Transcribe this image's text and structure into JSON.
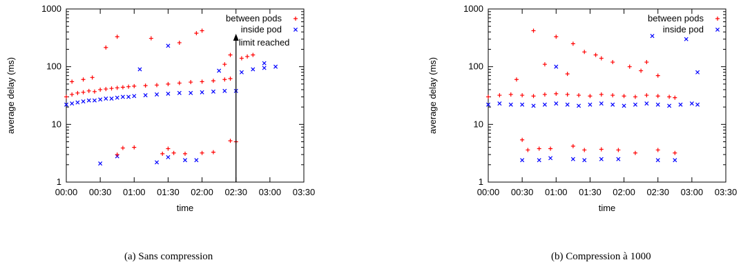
{
  "colors": {
    "between": "#ff0000",
    "inside": "#0000ff"
  },
  "chart_data": [
    {
      "type": "scatter",
      "xlabel": "time",
      "ylabel": "average delay (ms)",
      "y_scale": "log",
      "ylim": [
        1,
        1000
      ],
      "xlim": [
        "00:00",
        "03:30"
      ],
      "x_tick_labels": [
        "00:00",
        "00:30",
        "01:00",
        "01:30",
        "02:00",
        "02:30",
        "03:00",
        "03:30"
      ],
      "y_tick_labels": [
        "1",
        "10",
        "100",
        "1000"
      ],
      "legend_position": "top-right",
      "caption": "(a) Sans compression",
      "annotation": {
        "text": "limit reached",
        "x": "02:30"
      },
      "series": [
        {
          "name": "between pods",
          "marker": "+",
          "points": [
            [
              "00:00",
              30
            ],
            [
              "00:05",
              33
            ],
            [
              "00:10",
              35
            ],
            [
              "00:15",
              36
            ],
            [
              "00:20",
              38
            ],
            [
              "00:25",
              37
            ],
            [
              "00:30",
              40
            ],
            [
              "00:35",
              41
            ],
            [
              "00:40",
              42
            ],
            [
              "00:45",
              43
            ],
            [
              "00:50",
              44
            ],
            [
              "00:55",
              45
            ],
            [
              "01:00",
              46
            ],
            [
              "01:10",
              47
            ],
            [
              "01:20",
              48
            ],
            [
              "01:30",
              50
            ],
            [
              "01:40",
              52
            ],
            [
              "01:50",
              54
            ],
            [
              "02:00",
              55
            ],
            [
              "02:10",
              57
            ],
            [
              "02:20",
              60
            ],
            [
              "02:25",
              62
            ],
            [
              "02:35",
              140
            ],
            [
              "02:40",
              150
            ],
            [
              "02:45",
              160
            ],
            [
              "00:05",
              55
            ],
            [
              "00:15",
              60
            ],
            [
              "00:23",
              65
            ],
            [
              "00:35",
              215
            ],
            [
              "00:45",
              330
            ],
            [
              "01:15",
              310
            ],
            [
              "01:40",
              260
            ],
            [
              "01:55",
              380
            ],
            [
              "02:00",
              420
            ],
            [
              "02:20",
              110
            ],
            [
              "02:25",
              160
            ],
            [
              "00:45",
              3.0
            ],
            [
              "00:50",
              3.9
            ],
            [
              "01:00",
              4.0
            ],
            [
              "01:25",
              3.1
            ],
            [
              "01:30",
              3.8
            ],
            [
              "01:35",
              3.2
            ],
            [
              "01:45",
              3.1
            ],
            [
              "02:00",
              3.2
            ],
            [
              "02:10",
              3.3
            ],
            [
              "02:25",
              5.2
            ],
            [
              "02:30",
              5.0
            ]
          ]
        },
        {
          "name": "inside pod",
          "marker": "x",
          "points": [
            [
              "00:00",
              22
            ],
            [
              "00:05",
              23
            ],
            [
              "00:10",
              24
            ],
            [
              "00:15",
              25
            ],
            [
              "00:20",
              26
            ],
            [
              "00:25",
              26
            ],
            [
              "00:30",
              27
            ],
            [
              "00:35",
              28
            ],
            [
              "00:40",
              28
            ],
            [
              "00:45",
              29
            ],
            [
              "00:50",
              30
            ],
            [
              "00:55",
              30
            ],
            [
              "01:00",
              31
            ],
            [
              "01:10",
              32
            ],
            [
              "01:20",
              33
            ],
            [
              "01:30",
              34
            ],
            [
              "01:40",
              35
            ],
            [
              "01:50",
              35
            ],
            [
              "02:00",
              36
            ],
            [
              "02:10",
              37
            ],
            [
              "02:20",
              38
            ],
            [
              "02:30",
              38
            ],
            [
              "02:35",
              80
            ],
            [
              "02:45",
              90
            ],
            [
              "02:55",
              95
            ],
            [
              "03:05",
              100
            ],
            [
              "01:05",
              90
            ],
            [
              "01:30",
              230
            ],
            [
              "02:15",
              85
            ],
            [
              "02:55",
              115
            ],
            [
              "00:30",
              2.1
            ],
            [
              "00:45",
              2.8
            ],
            [
              "01:20",
              2.2
            ],
            [
              "01:30",
              2.7
            ],
            [
              "01:45",
              2.4
            ],
            [
              "01:55",
              2.4
            ]
          ]
        }
      ]
    },
    {
      "type": "scatter",
      "xlabel": "time",
      "ylabel": "average delay (ms)",
      "y_scale": "log",
      "ylim": [
        1,
        1000
      ],
      "xlim": [
        "00:00",
        "03:30"
      ],
      "x_tick_labels": [
        "00:00",
        "00:30",
        "01:00",
        "01:30",
        "02:00",
        "02:30",
        "03:00",
        "03:30"
      ],
      "y_tick_labels": [
        "1",
        "10",
        "100",
        "1000"
      ],
      "legend_position": "top-right",
      "caption": "(b) Compression à 1000",
      "series": [
        {
          "name": "between pods",
          "marker": "+",
          "points": [
            [
              "00:00",
              30
            ],
            [
              "00:10",
              32
            ],
            [
              "00:20",
              33
            ],
            [
              "00:30",
              32
            ],
            [
              "00:40",
              31
            ],
            [
              "00:50",
              33
            ],
            [
              "01:00",
              34
            ],
            [
              "01:10",
              33
            ],
            [
              "01:20",
              32
            ],
            [
              "01:30",
              31
            ],
            [
              "01:40",
              33
            ],
            [
              "01:50",
              32
            ],
            [
              "02:00",
              31
            ],
            [
              "02:10",
              30
            ],
            [
              "02:20",
              32
            ],
            [
              "02:30",
              31
            ],
            [
              "02:40",
              30
            ],
            [
              "02:45",
              29
            ],
            [
              "00:40",
              420
            ],
            [
              "01:00",
              330
            ],
            [
              "01:15",
              250
            ],
            [
              "01:25",
              180
            ],
            [
              "01:40",
              140
            ],
            [
              "01:50",
              120
            ],
            [
              "02:05",
              100
            ],
            [
              "02:15",
              85
            ],
            [
              "02:30",
              70
            ],
            [
              "00:50",
              110
            ],
            [
              "01:35",
              160
            ],
            [
              "02:20",
              120
            ],
            [
              "00:25",
              60
            ],
            [
              "01:10",
              75
            ],
            [
              "00:30",
              5.4
            ],
            [
              "00:35",
              3.6
            ],
            [
              "00:45",
              3.8
            ],
            [
              "00:55",
              3.8
            ],
            [
              "01:15",
              4.2
            ],
            [
              "01:25",
              3.6
            ],
            [
              "01:40",
              3.7
            ],
            [
              "01:55",
              3.6
            ],
            [
              "02:10",
              3.2
            ],
            [
              "02:30",
              3.6
            ],
            [
              "02:45",
              3.2
            ]
          ]
        },
        {
          "name": "inside pod",
          "marker": "x",
          "points": [
            [
              "00:00",
              22
            ],
            [
              "00:10",
              23
            ],
            [
              "00:20",
              22
            ],
            [
              "00:30",
              22
            ],
            [
              "00:40",
              21
            ],
            [
              "00:50",
              22
            ],
            [
              "01:00",
              23
            ],
            [
              "01:10",
              22
            ],
            [
              "01:20",
              21
            ],
            [
              "01:30",
              22
            ],
            [
              "01:40",
              23
            ],
            [
              "01:50",
              22
            ],
            [
              "02:00",
              21
            ],
            [
              "02:10",
              22
            ],
            [
              "02:20",
              23
            ],
            [
              "02:30",
              22
            ],
            [
              "02:40",
              21
            ],
            [
              "02:50",
              22
            ],
            [
              "03:00",
              23
            ],
            [
              "03:05",
              22
            ],
            [
              "01:00",
              100
            ],
            [
              "02:25",
              340
            ],
            [
              "02:55",
              300
            ],
            [
              "03:05",
              80
            ],
            [
              "00:30",
              2.4
            ],
            [
              "00:45",
              2.4
            ],
            [
              "00:55",
              2.6
            ],
            [
              "01:15",
              2.5
            ],
            [
              "01:25",
              2.4
            ],
            [
              "01:40",
              2.5
            ],
            [
              "01:55",
              2.5
            ],
            [
              "02:30",
              2.4
            ],
            [
              "02:45",
              2.4
            ]
          ]
        }
      ]
    }
  ]
}
